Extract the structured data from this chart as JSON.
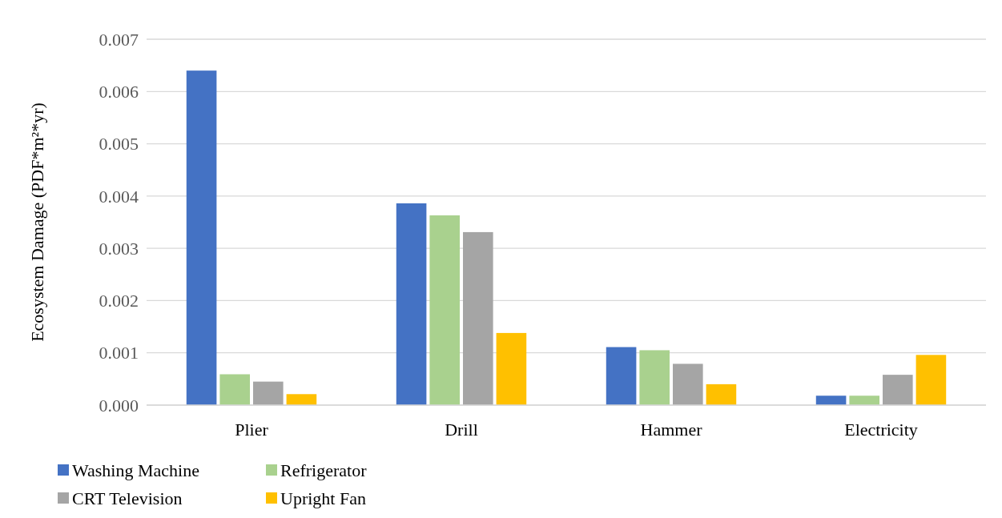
{
  "chart_data": {
    "type": "bar",
    "ylabel": "Ecosystem Damage (PDF*m²*yr)",
    "categories": [
      "Plier",
      "Drill",
      "Hammer",
      "Electricity"
    ],
    "series": [
      {
        "name": "Washing Machine",
        "color": "#4472c4",
        "values": [
          0.0064,
          0.00386,
          0.00111,
          0.00018
        ]
      },
      {
        "name": "Refrigerator",
        "color": "#a9d18e",
        "values": [
          0.00059,
          0.00363,
          0.00105,
          0.00018
        ]
      },
      {
        "name": "CRT Television",
        "color": "#a5a5a5",
        "values": [
          0.00045,
          0.00331,
          0.00079,
          0.00058
        ]
      },
      {
        "name": "Upright Fan",
        "color": "#ffc000",
        "values": [
          0.00021,
          0.00138,
          0.0004,
          0.00096
        ]
      }
    ],
    "ylim": [
      0,
      0.007
    ],
    "yticks": [
      {
        "value": 0,
        "label": "0.000"
      },
      {
        "value": 0.001,
        "label": "0.001"
      },
      {
        "value": 0.002,
        "label": "0.002"
      },
      {
        "value": 0.003,
        "label": "0.003"
      },
      {
        "value": 0.004,
        "label": "0.004"
      },
      {
        "value": 0.005,
        "label": "0.005"
      },
      {
        "value": 0.006,
        "label": "0.006"
      },
      {
        "value": 0.007,
        "label": "0.007"
      }
    ],
    "grid": "y",
    "legend": "bottom left"
  }
}
